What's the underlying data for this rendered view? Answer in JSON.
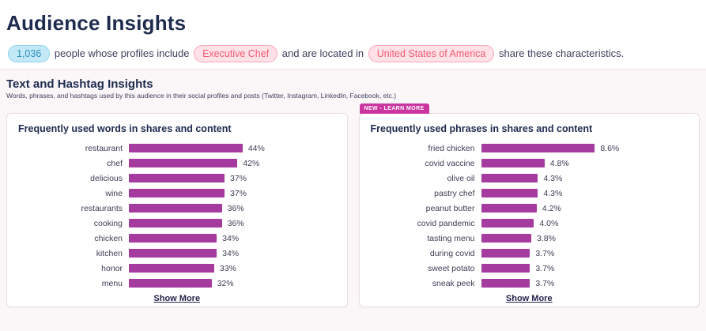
{
  "header": {
    "title": "Audience Insights",
    "count": "1,036",
    "text_profiles": "people whose profiles include",
    "filter_job": "Executive Chef",
    "text_located": "and are located in",
    "filter_location": "United States of America",
    "text_share": "share these characteristics."
  },
  "section": {
    "title": "Text and Hashtag Insights",
    "subtitle": "Words, phrases, and hashtags used by this audience in their social profiles and posts (Twitter, Instagram, LinkedIn, Facebook, etc.)"
  },
  "colors": {
    "bar": "#a53b9e",
    "accent_navy": "#1e2b4f",
    "badge_magenta": "#cb35a0",
    "pill_blue_text": "#2f8fbe",
    "pill_pink_text": "#f25c72"
  },
  "chart_data": [
    {
      "type": "bar",
      "orientation": "horizontal",
      "title": "Frequently used words in shares and content",
      "categories": [
        "restaurant",
        "chef",
        "delicious",
        "wine",
        "restaurants",
        "cooking",
        "chicken",
        "kitchen",
        "honor",
        "menu"
      ],
      "values": [
        44,
        42,
        37,
        37,
        36,
        36,
        34,
        34,
        33,
        32
      ],
      "value_labels": [
        "44%",
        "42%",
        "37%",
        "37%",
        "36%",
        "36%",
        "34%",
        "34%",
        "33%",
        "32%"
      ],
      "unit": "%",
      "xlim": [
        0,
        44
      ],
      "show_more_label": "Show More"
    },
    {
      "type": "bar",
      "orientation": "horizontal",
      "title": "Frequently used phrases in shares and content",
      "badge": "NEW - LEARN MORE",
      "categories": [
        "fried chicken",
        "covid vaccine",
        "olive oil",
        "pastry chef",
        "peanut butter",
        "covid pandemic",
        "tasting menu",
        "during covid",
        "sweet potato",
        "sneak peek"
      ],
      "values": [
        8.6,
        4.8,
        4.3,
        4.3,
        4.2,
        4.0,
        3.8,
        3.7,
        3.7,
        3.7
      ],
      "value_labels": [
        "8.6%",
        "4.8%",
        "4.3%",
        "4.3%",
        "4.2%",
        "4.0%",
        "3.8%",
        "3.7%",
        "3.7%",
        "3.7%"
      ],
      "unit": "%",
      "xlim": [
        0,
        8.6
      ],
      "show_more_label": "Show More"
    }
  ]
}
